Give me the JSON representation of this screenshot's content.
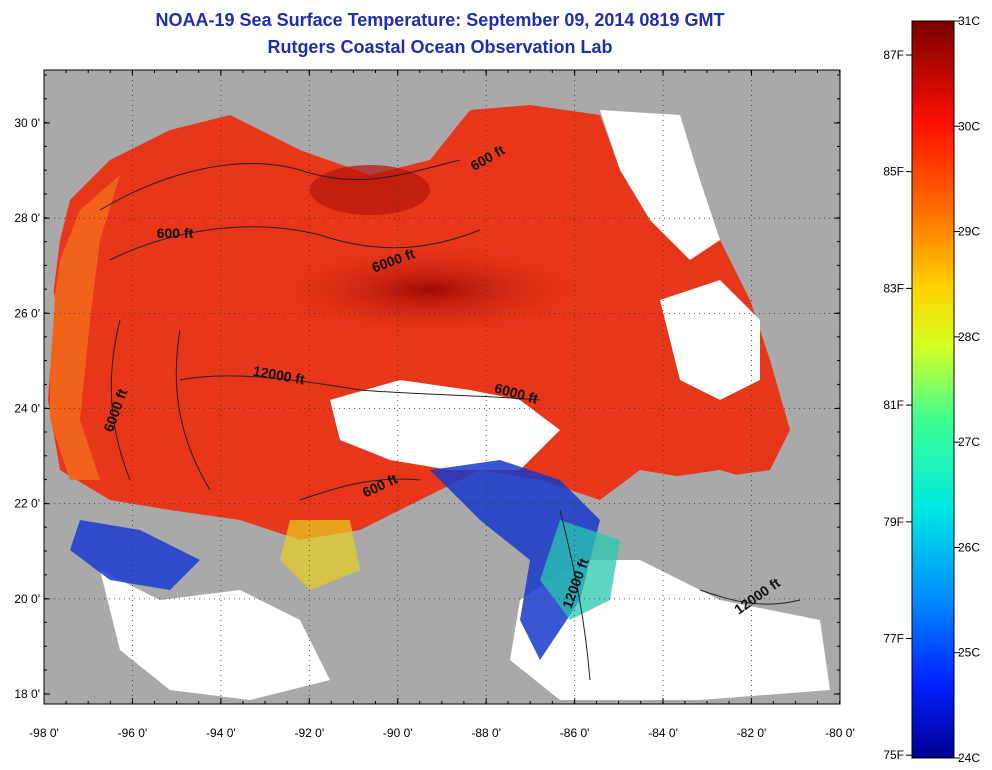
{
  "title": "NOAA-19 Sea Surface Temperature:  September 09, 2014 0819 GMT",
  "subtitle": "Rutgers Coastal Ocean Observation Lab",
  "lat_labels": [
    "30 0'",
    "28 0'",
    "26 0'",
    "24 0'",
    "22 0'",
    "20 0'",
    "18 0'"
  ],
  "lon_labels": [
    "-98 0'",
    "-96 0'",
    "-94 0'",
    "-92 0'",
    "-90 0'",
    "-88 0'",
    "-86 0'",
    "-84 0'",
    "-82 0'",
    "-80 0'"
  ],
  "contour_labels": [
    "600 ft",
    "600 ft",
    "6000 ft",
    "12000 ft",
    "6000 ft",
    "6000 ft",
    "600 ft",
    "12000 ft",
    "12000 ft"
  ],
  "colorbar": {
    "celsius_labels": [
      "31C",
      "30C",
      "29C",
      "28C",
      "27C",
      "26C",
      "25C",
      "24C"
    ],
    "fahrenheit_labels": [
      "87F",
      "85F",
      "83F",
      "81F",
      "79F",
      "77F",
      "75F"
    ]
  },
  "colors": {
    "land": "#a9a9a9",
    "cloud": "#ffffff",
    "warm": "#e8361a",
    "hot": "#8b0000",
    "cool": "#1030c8",
    "title": "#1f2fb0"
  }
}
